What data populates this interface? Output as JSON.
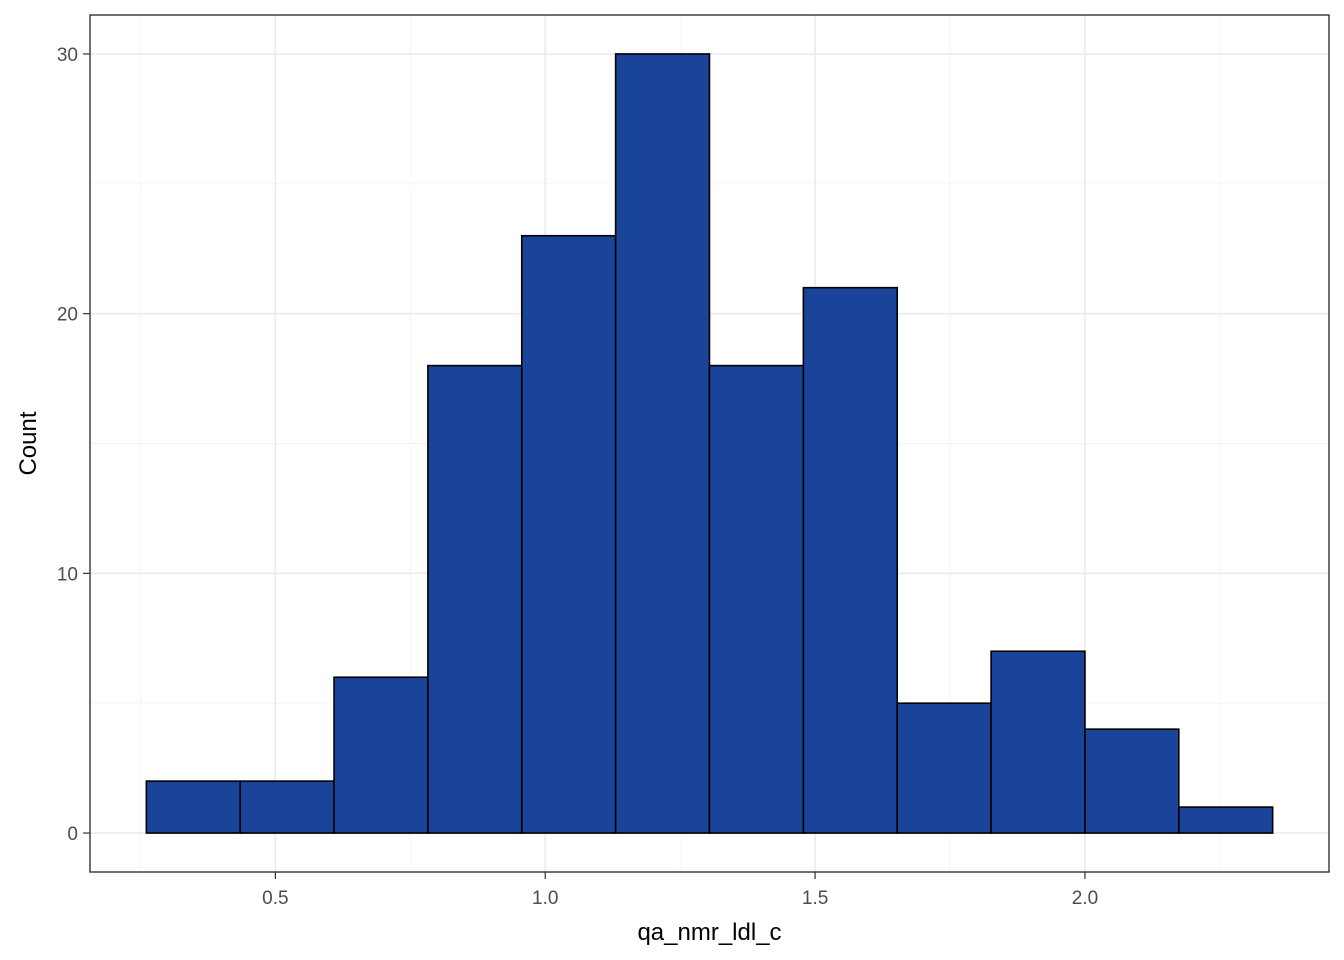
{
  "chart_data": {
    "type": "bar",
    "subtype": "histogram",
    "title": "",
    "xlabel": "qa_nmr_ldl_c",
    "ylabel": "Count",
    "bin_width": 0.1739,
    "bins": [
      {
        "start": 0.2609,
        "end": 0.4348,
        "count": 2
      },
      {
        "start": 0.4348,
        "end": 0.6087,
        "count": 2
      },
      {
        "start": 0.6087,
        "end": 0.7826,
        "count": 6
      },
      {
        "start": 0.7826,
        "end": 0.9565,
        "count": 18
      },
      {
        "start": 0.9565,
        "end": 1.1304,
        "count": 23
      },
      {
        "start": 1.1304,
        "end": 1.3043,
        "count": 30
      },
      {
        "start": 1.3043,
        "end": 1.4783,
        "count": 18
      },
      {
        "start": 1.4783,
        "end": 1.6522,
        "count": 21
      },
      {
        "start": 1.6522,
        "end": 1.8261,
        "count": 5
      },
      {
        "start": 1.8261,
        "end": 2.0,
        "count": 7
      },
      {
        "start": 2.0,
        "end": 2.1739,
        "count": 4
      },
      {
        "start": 2.1739,
        "end": 2.3478,
        "count": 1
      }
    ],
    "xlim": [
      0.1565,
      2.4522
    ],
    "ylim": [
      -1.5,
      31.5
    ],
    "x_ticks": [
      0.5,
      1.0,
      1.5,
      2.0
    ],
    "x_tick_labels": [
      "0.5",
      "1.0",
      "1.5",
      "2.0"
    ],
    "y_ticks": [
      0,
      10,
      20,
      30
    ],
    "y_tick_labels": [
      "0",
      "10",
      "20",
      "30"
    ],
    "grid": true,
    "legend": "none",
    "colors": {
      "bar_fill": "#1a4499",
      "bar_outline": "#000000",
      "panel_background": "#ffffff"
    }
  }
}
